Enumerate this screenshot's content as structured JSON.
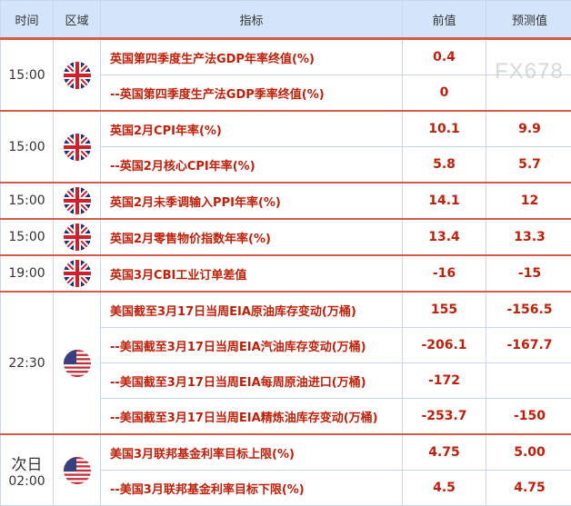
{
  "headers": {
    "time": "时间",
    "region": "区域",
    "indicator": "指标",
    "previous": "前值",
    "forecast": "预测值"
  },
  "colors": {
    "header_bg": "#d3e4fb",
    "accent_red": "#c0200a",
    "separator": "#d35b4a"
  },
  "groups": [
    {
      "time": "15:00",
      "flag": "uk-flag-icon",
      "rows": [
        {
          "indicator": "英国第四季度生产法GDP年率终值(%)",
          "previous": "0.4",
          "forecast": ""
        },
        {
          "indicator": "--英国第四季度生产法GDP季率终值(%)",
          "previous": "0",
          "forecast": ""
        }
      ]
    },
    {
      "time": "15:00",
      "flag": "uk-flag-icon",
      "rows": [
        {
          "indicator": "英国2月CPI年率(%)",
          "previous": "10.1",
          "forecast": "9.9"
        },
        {
          "indicator": "--英国2月核心CPI年率(%)",
          "previous": "5.8",
          "forecast": "5.7"
        }
      ]
    },
    {
      "time": "15:00",
      "flag": "uk-flag-icon",
      "rows": [
        {
          "indicator": "英国2月未季调输入PPI年率(%)",
          "previous": "14.1",
          "forecast": "12"
        }
      ]
    },
    {
      "time": "15:00",
      "flag": "uk-flag-icon",
      "rows": [
        {
          "indicator": "英国2月零售物价指数年率(%)",
          "previous": "13.4",
          "forecast": "13.3"
        }
      ]
    },
    {
      "time": "19:00",
      "flag": "uk-flag-icon",
      "rows": [
        {
          "indicator": "英国3月CBI工业订单差值",
          "previous": "-16",
          "forecast": "-15"
        }
      ]
    },
    {
      "time": "22:30",
      "flag": "us-flag-icon",
      "rows": [
        {
          "indicator": "美国截至3月17日当周EIA原油库存变动(万桶)",
          "previous": "155",
          "forecast": "-156.5"
        },
        {
          "indicator": "--美国截至3月17日当周EIA汽油库存变动(万桶)",
          "previous": "-206.1",
          "forecast": "-167.7"
        },
        {
          "indicator": "--美国截至3月17日当周EIA每周原油进口(万桶)",
          "previous": "-172",
          "forecast": ""
        },
        {
          "indicator": "--美国截至3月17日当周EIA精炼油库存变动(万桶)",
          "previous": "-253.7",
          "forecast": "-150"
        }
      ]
    },
    {
      "day": "次日",
      "time": "02:00",
      "flag": "us-flag-icon",
      "rows": [
        {
          "indicator": "美国3月联邦基金利率目标上限(%)",
          "previous": "4.75",
          "forecast": "5.00"
        },
        {
          "indicator": "--美国3月联邦基金利率目标下限(%)",
          "previous": "4.5",
          "forecast": "4.75"
        }
      ]
    }
  ],
  "watermark": "FX678"
}
